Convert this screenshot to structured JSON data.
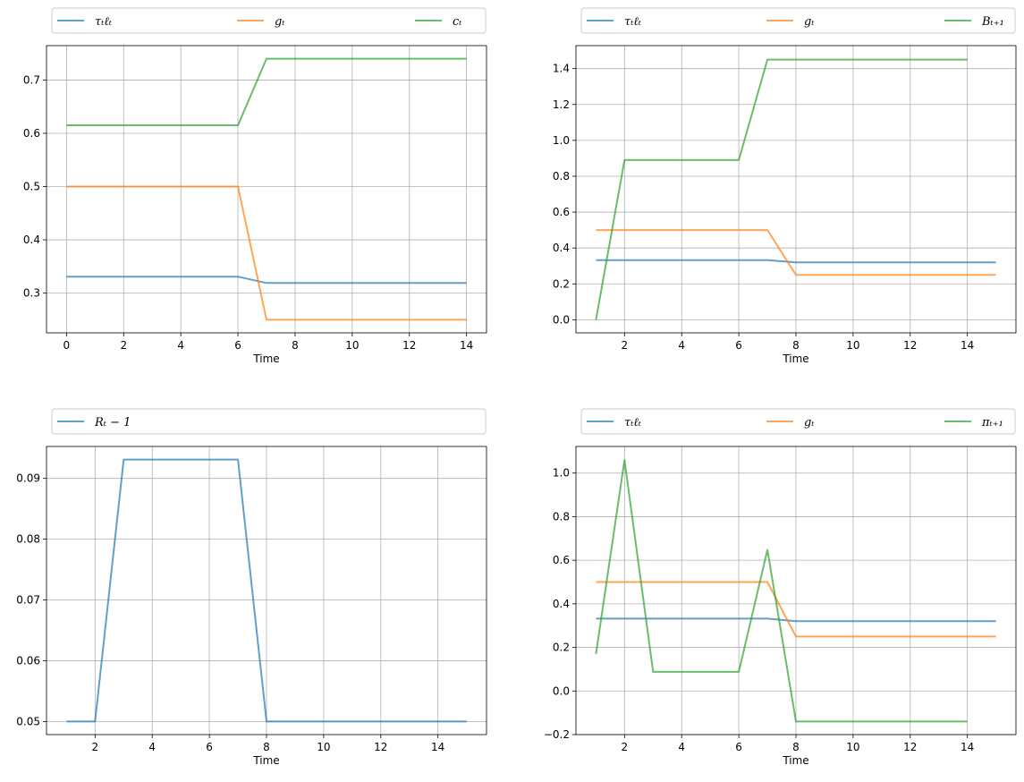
{
  "colors": {
    "blue": "#1f77b4",
    "orange": "#ff7f0e",
    "green": "#2ca02c",
    "grid": "#b0b0b0"
  },
  "chart_data": [
    {
      "type": "line",
      "title": "",
      "xlabel": "Time",
      "ylabel": "",
      "grid": true,
      "legend_placement": "top-expanded",
      "xlim": [
        -0.7,
        14.7
      ],
      "ylim": [
        0.2255,
        0.7645
      ],
      "xticks": [
        0,
        2,
        4,
        6,
        8,
        10,
        12,
        14
      ],
      "xtick_labels": [
        "0",
        "2",
        "4",
        "6",
        "8",
        "10",
        "12",
        "14"
      ],
      "yticks": [
        0.3,
        0.4,
        0.5,
        0.6,
        0.7
      ],
      "ytick_labels": [
        "0.3",
        "0.4",
        "0.5",
        "0.6",
        "0.7"
      ],
      "series": [
        {
          "name": "τₜℓₜ",
          "color": "blue",
          "x": [
            0,
            1,
            2,
            3,
            4,
            5,
            6,
            7,
            8,
            9,
            10,
            11,
            12,
            13,
            14
          ],
          "y": [
            0.331,
            0.331,
            0.331,
            0.331,
            0.331,
            0.331,
            0.331,
            0.319,
            0.319,
            0.319,
            0.319,
            0.319,
            0.319,
            0.319,
            0.319
          ]
        },
        {
          "name": "gₜ",
          "color": "orange",
          "x": [
            0,
            1,
            2,
            3,
            4,
            5,
            6,
            7,
            8,
            9,
            10,
            11,
            12,
            13,
            14
          ],
          "y": [
            0.5,
            0.5,
            0.5,
            0.5,
            0.5,
            0.5,
            0.5,
            0.25,
            0.25,
            0.25,
            0.25,
            0.25,
            0.25,
            0.25,
            0.25
          ]
        },
        {
          "name": "cₜ",
          "color": "green",
          "x": [
            0,
            1,
            2,
            3,
            4,
            5,
            6,
            7,
            8,
            9,
            10,
            11,
            12,
            13,
            14
          ],
          "y": [
            0.615,
            0.615,
            0.615,
            0.615,
            0.615,
            0.615,
            0.615,
            0.74,
            0.74,
            0.74,
            0.74,
            0.74,
            0.74,
            0.74,
            0.74
          ]
        }
      ]
    },
    {
      "type": "line",
      "title": "",
      "xlabel": "Time",
      "ylabel": "",
      "grid": true,
      "legend_placement": "top-expanded",
      "xlim": [
        0.3,
        15.7
      ],
      "ylim": [
        -0.073,
        1.528
      ],
      "xticks": [
        2,
        4,
        6,
        8,
        10,
        12,
        14
      ],
      "xtick_labels": [
        "2",
        "4",
        "6",
        "8",
        "10",
        "12",
        "14"
      ],
      "yticks": [
        0,
        0.2,
        0.4,
        0.6,
        0.8,
        1.0,
        1.2,
        1.4
      ],
      "ytick_labels": [
        "0.0",
        "0.2",
        "0.4",
        "0.6",
        "0.8",
        "1.0",
        "1.2",
        "1.4"
      ],
      "series": [
        {
          "name": "τₜℓₜ",
          "color": "blue",
          "x": [
            1,
            2,
            3,
            4,
            5,
            6,
            7,
            8,
            9,
            10,
            11,
            12,
            13,
            14,
            15
          ],
          "y": [
            0.332,
            0.332,
            0.332,
            0.332,
            0.332,
            0.332,
            0.332,
            0.32,
            0.32,
            0.32,
            0.32,
            0.32,
            0.32,
            0.32,
            0.32
          ]
        },
        {
          "name": "gₜ",
          "color": "orange",
          "x": [
            1,
            2,
            3,
            4,
            5,
            6,
            7,
            8,
            9,
            10,
            11,
            12,
            13,
            14,
            15
          ],
          "y": [
            0.5,
            0.5,
            0.5,
            0.5,
            0.5,
            0.5,
            0.5,
            0.25,
            0.25,
            0.25,
            0.25,
            0.25,
            0.25,
            0.25,
            0.25
          ]
        },
        {
          "name": "Bₜ₊₁",
          "color": "green",
          "x": [
            1,
            2,
            3,
            4,
            5,
            6,
            7,
            8,
            9,
            10,
            11,
            12,
            13,
            14
          ],
          "y": [
            0,
            0.89,
            0.89,
            0.89,
            0.89,
            0.89,
            1.45,
            1.45,
            1.45,
            1.45,
            1.45,
            1.45,
            1.45,
            1.45
          ]
        }
      ]
    },
    {
      "type": "line",
      "title": "",
      "xlabel": "Time",
      "ylabel": "",
      "grid": true,
      "legend_placement": "top-expanded",
      "xlim": [
        0.3,
        15.7
      ],
      "ylim": [
        0.04785,
        0.09525
      ],
      "xticks": [
        2,
        4,
        6,
        8,
        10,
        12,
        14
      ],
      "xtick_labels": [
        "2",
        "4",
        "6",
        "8",
        "10",
        "12",
        "14"
      ],
      "yticks": [
        0.05,
        0.06,
        0.07,
        0.08,
        0.09
      ],
      "ytick_labels": [
        "0.05",
        "0.06",
        "0.07",
        "0.08",
        "0.09"
      ],
      "series": [
        {
          "name": "Rₜ − 1",
          "color": "blue",
          "x": [
            1,
            2,
            3,
            4,
            5,
            6,
            7,
            8,
            9,
            10,
            11,
            12,
            13,
            14,
            15
          ],
          "y": [
            0.05,
            0.05,
            0.0931,
            0.0931,
            0.0931,
            0.0931,
            0.0931,
            0.05,
            0.05,
            0.05,
            0.05,
            0.05,
            0.05,
            0.05,
            0.05
          ]
        }
      ]
    },
    {
      "type": "line",
      "title": "",
      "xlabel": "Time",
      "ylabel": "",
      "grid": true,
      "legend_placement": "top-expanded",
      "xlim": [
        0.3,
        15.7
      ],
      "ylim": [
        -0.2,
        1.122
      ],
      "xticks": [
        2,
        4,
        6,
        8,
        10,
        12,
        14
      ],
      "xtick_labels": [
        "2",
        "4",
        "6",
        "8",
        "10",
        "12",
        "14"
      ],
      "yticks": [
        -0.2,
        0,
        0.2,
        0.4,
        0.6,
        0.8,
        1.0
      ],
      "ytick_labels": [
        "−0.2",
        "0.0",
        "0.2",
        "0.4",
        "0.6",
        "0.8",
        "1.0"
      ],
      "series": [
        {
          "name": "τₜℓₜ",
          "color": "blue",
          "x": [
            1,
            2,
            3,
            4,
            5,
            6,
            7,
            8,
            9,
            10,
            11,
            12,
            13,
            14,
            15
          ],
          "y": [
            0.332,
            0.332,
            0.332,
            0.332,
            0.332,
            0.332,
            0.332,
            0.32,
            0.32,
            0.32,
            0.32,
            0.32,
            0.32,
            0.32,
            0.32
          ]
        },
        {
          "name": "gₜ",
          "color": "orange",
          "x": [
            1,
            2,
            3,
            4,
            5,
            6,
            7,
            8,
            9,
            10,
            11,
            12,
            13,
            14,
            15
          ],
          "y": [
            0.5,
            0.5,
            0.5,
            0.5,
            0.5,
            0.5,
            0.5,
            0.25,
            0.25,
            0.25,
            0.25,
            0.25,
            0.25,
            0.25,
            0.25
          ]
        },
        {
          "name": "πₜ₊₁",
          "color": "green",
          "x": [
            1,
            2,
            3,
            4,
            5,
            6,
            7,
            8,
            9,
            10,
            11,
            12,
            13,
            14
          ],
          "y": [
            0.17,
            1.06,
            0.088,
            0.088,
            0.088,
            0.088,
            0.648,
            -0.14,
            -0.14,
            -0.14,
            -0.14,
            -0.14,
            -0.14,
            -0.14
          ]
        }
      ]
    }
  ]
}
